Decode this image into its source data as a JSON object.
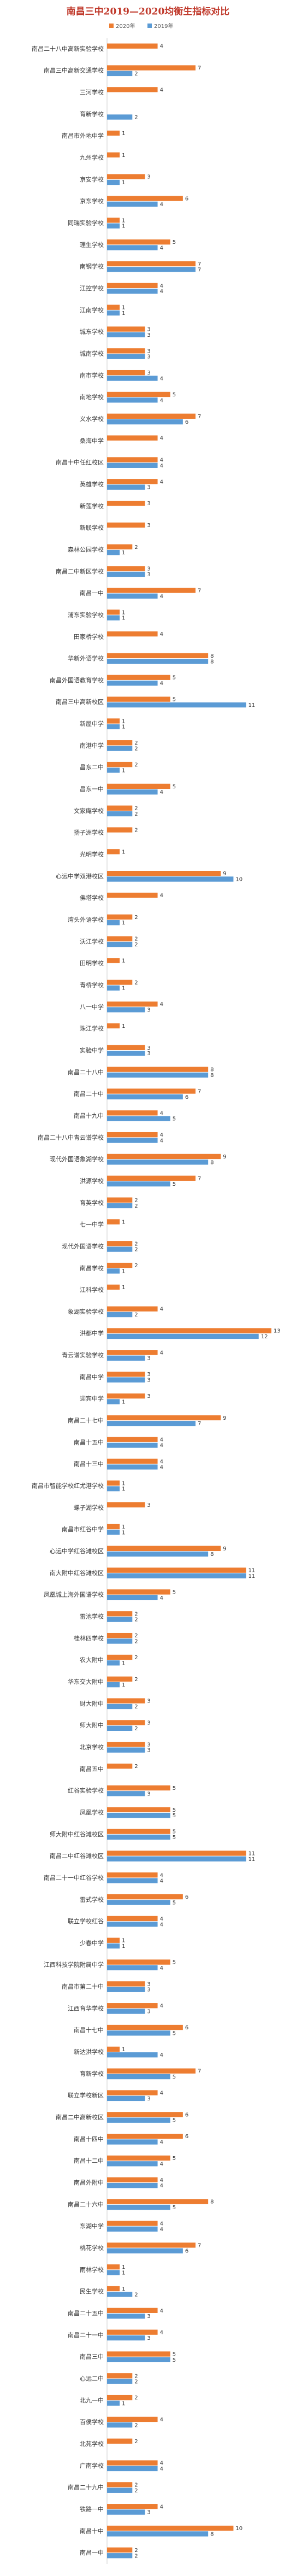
{
  "chart_data": {
    "type": "hbar",
    "title": "南昌三中2019—2020均衡生指标对比",
    "categories": [
      "南昌二十八中高新实验学校",
      "南昌三中高新交通学校",
      "三河学校",
      "育新学校",
      "南昌市外地中学",
      "九州学校",
      "京安学校",
      "京东学校",
      "同瑞实验学校",
      "理生学校",
      "南钢学校",
      "江控学校",
      "江南学校",
      "城东学校",
      "城南学校",
      "南市学校",
      "南地学校",
      "义水学校",
      "桑海中学",
      "南昌十中任红校区",
      "英雄学校",
      "新莲学校",
      "新联学校",
      "森林公园学校",
      "南昌二中新区学校",
      "南昌一中",
      "浦东实验学校",
      "田家桥学校",
      "华新外语学校",
      "南昌外国语教育学校",
      "南昌三中高新校区",
      "新屋中学",
      "南港中学",
      "昌东二中",
      "昌东一中",
      "文家庵学校",
      "扬子洲学校",
      "光明学校",
      "心远中学双港校区",
      "佛塔学校",
      "湾头外语学校",
      "沃江学校",
      "田明学校",
      "青桥学校",
      "八一中学",
      "珠江学校",
      "实验中学",
      "南昌二十八中",
      "南昌二十中",
      "南昌十九中",
      "南昌二十八中青云谱学校",
      "现代外国语象湖学校",
      "洪源学校",
      "育英学校",
      "七一中学",
      "现代外国语学校",
      "南昌学校",
      "江科学校",
      "象湖实验学校",
      "洪都中学",
      "青云谱实验学校",
      "南昌中学",
      "迎宾中学",
      "南昌二十七中",
      "南昌十五中",
      "南昌十三中",
      "南昌市智能学校红尤港学校",
      "螺子湖学校",
      "南昌市红谷中学",
      "心远中学红谷滩校区",
      "南大附中红谷滩校区",
      "凤凰城上海外国语学校",
      "雷池学校",
      "桂林四学校",
      "农大附中",
      "华东交大附中",
      "财大附中",
      "师大附中",
      "北京学校",
      "南昌五中",
      "红谷实验学校",
      "凤凰学校",
      "师大附中红谷滩校区",
      "南昌二中红谷滩校区",
      "南昌二十一中红谷学校",
      "雷式学校",
      "联立学校红谷",
      "少春中学",
      "江西科技学院附属中学",
      "南昌市第二十中",
      "江西育华学校",
      "南昌十七中",
      "新达洪学校",
      "育新学校",
      "联立学校新区",
      "南昌二中高新校区",
      "南昌十四中",
      "南昌十二中",
      "南昌外附中",
      "南昌二十六中",
      "东湖中学",
      "桃花学校",
      "雨林学校",
      "民生学校",
      "南昌二十五中",
      "南昌二十一中",
      "南昌三中",
      "心远二中",
      "北九一中",
      "百侯学校",
      "北苑学校",
      "广南学校",
      "南昌二十九中",
      "铁路一中",
      "南昌十中",
      "南昌一中"
    ],
    "series": [
      {
        "name": "2020年",
        "color": "#ed7d31",
        "values": [
          4,
          7,
          4,
          null,
          1,
          1,
          3,
          6,
          1,
          5,
          7,
          4,
          1,
          3,
          3,
          3,
          5,
          7,
          4,
          4,
          4,
          3,
          3,
          2,
          3,
          7,
          1,
          4,
          8,
          5,
          5,
          1,
          2,
          2,
          5,
          2,
          2,
          1,
          9,
          4,
          2,
          2,
          1,
          2,
          4,
          1,
          3,
          8,
          7,
          4,
          4,
          9,
          7,
          2,
          1,
          2,
          2,
          1,
          4,
          13,
          4,
          3,
          3,
          9,
          4,
          4,
          1,
          3,
          1,
          9,
          11,
          5,
          2,
          2,
          2,
          2,
          3,
          3,
          3,
          2,
          5,
          5,
          5,
          11,
          4,
          6,
          4,
          1,
          5,
          3,
          4,
          6,
          1,
          7,
          4,
          6,
          6,
          5,
          4,
          8,
          4,
          7,
          1,
          1,
          4,
          4,
          5,
          2,
          2,
          4,
          2,
          4,
          2,
          4,
          10,
          2
        ]
      },
      {
        "name": "2019年",
        "color": "#5b9bd5",
        "values": [
          null,
          2,
          null,
          2,
          null,
          null,
          1,
          4,
          1,
          4,
          7,
          4,
          1,
          3,
          3,
          4,
          4,
          6,
          null,
          4,
          3,
          null,
          null,
          1,
          3,
          4,
          1,
          null,
          8,
          4,
          11,
          1,
          2,
          1,
          4,
          2,
          null,
          null,
          10,
          null,
          1,
          2,
          null,
          1,
          3,
          null,
          3,
          8,
          6,
          5,
          4,
          8,
          5,
          2,
          null,
          2,
          1,
          null,
          2,
          12,
          3,
          3,
          1,
          7,
          4,
          4,
          1,
          null,
          1,
          8,
          11,
          4,
          2,
          2,
          1,
          1,
          2,
          2,
          3,
          null,
          3,
          5,
          5,
          11,
          4,
          5,
          4,
          1,
          4,
          3,
          3,
          5,
          4,
          5,
          3,
          5,
          4,
          4,
          4,
          5,
          4,
          6,
          1,
          2,
          3,
          3,
          5,
          2,
          1,
          2,
          null,
          4,
          2,
          3,
          8,
          2
        ]
      }
    ],
    "xlim": [
      0,
      14
    ]
  }
}
